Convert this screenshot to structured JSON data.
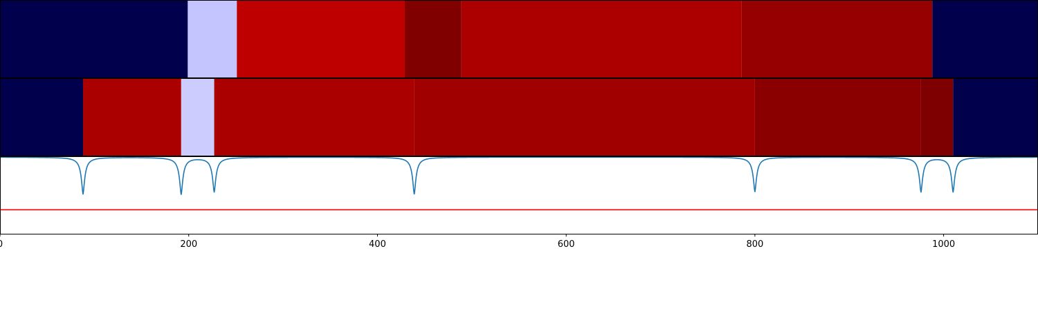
{
  "chart_data": [
    {
      "type": "heatmap",
      "name": "segment-track-1",
      "xlim": [
        0,
        1100
      ],
      "grid": false,
      "segments": [
        {
          "start": 0,
          "end": 199,
          "color": "#00004c"
        },
        {
          "start": 199,
          "end": 251,
          "color": "#c4c4ff"
        },
        {
          "start": 251,
          "end": 429,
          "color": "#be0000"
        },
        {
          "start": 429,
          "end": 489,
          "color": "#800000"
        },
        {
          "start": 489,
          "end": 786,
          "color": "#ac0000"
        },
        {
          "start": 786,
          "end": 988,
          "color": "#960000"
        },
        {
          "start": 988,
          "end": 1100,
          "color": "#00004c"
        }
      ]
    },
    {
      "type": "heatmap",
      "name": "segment-track-2",
      "xlim": [
        0,
        1100
      ],
      "grid": false,
      "segments": [
        {
          "start": 0,
          "end": 88,
          "color": "#00004c"
        },
        {
          "start": 88,
          "end": 192,
          "color": "#ab0000"
        },
        {
          "start": 192,
          "end": 227,
          "color": "#ccccff"
        },
        {
          "start": 227,
          "end": 439,
          "color": "#ab0000"
        },
        {
          "start": 439,
          "end": 800,
          "color": "#a00000"
        },
        {
          "start": 800,
          "end": 976,
          "color": "#8a0000"
        },
        {
          "start": 976,
          "end": 1010,
          "color": "#7e0000"
        },
        {
          "start": 1010,
          "end": 1100,
          "color": "#00004c"
        }
      ]
    },
    {
      "type": "line",
      "name": "signal-track",
      "xlim": [
        0,
        1100
      ],
      "ylim": [
        0,
        1
      ],
      "grid": false,
      "baseline": 0.99,
      "dips": [
        {
          "x": 88,
          "depth": 0.48
        },
        {
          "x": 192,
          "depth": 0.48
        },
        {
          "x": 227,
          "depth": 0.45
        },
        {
          "x": 439,
          "depth": 0.48
        },
        {
          "x": 800,
          "depth": 0.45
        },
        {
          "x": 976,
          "depth": 0.45
        },
        {
          "x": 1010,
          "depth": 0.45
        }
      ],
      "threshold": 0.31,
      "threshold_color": "#ff0000",
      "line_color": "#1f77b4",
      "xticks": [
        0,
        200,
        400,
        600,
        800,
        1000
      ],
      "xtick_labels": [
        "0",
        "200",
        "400",
        "600",
        "800",
        "1000"
      ]
    }
  ]
}
